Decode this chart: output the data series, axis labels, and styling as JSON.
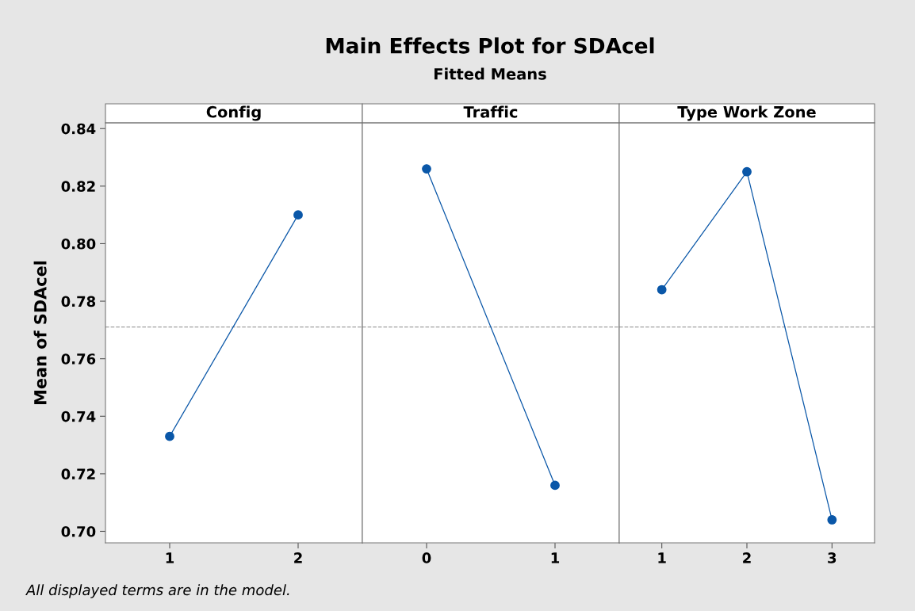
{
  "chart_data": [
    {
      "type": "line",
      "title": "Config",
      "annotations": [
        "Main Effects Plot for SDAcel",
        "Fitted Means",
        "All displayed terms are in the model."
      ],
      "ylabel": "Mean of SDAcel",
      "categories": [
        "1",
        "2"
      ],
      "series": [
        {
          "color": "#0a57a8",
          "values": [
            0.733,
            0.81
          ]
        }
      ],
      "ylim": [
        0.696,
        0.842
      ],
      "yticks": [
        {
          "value": 0.7,
          "label": "0.70"
        },
        {
          "value": 0.72,
          "label": "0.72"
        },
        {
          "value": 0.74,
          "label": "0.74"
        },
        {
          "value": 0.76,
          "label": "0.76"
        },
        {
          "value": 0.78,
          "label": "0.78"
        },
        {
          "value": 0.8,
          "label": "0.80"
        },
        {
          "value": 0.82,
          "label": "0.82"
        },
        {
          "value": 0.84,
          "label": "0.84"
        }
      ],
      "ref_lines": [
        {
          "axis": "y",
          "value": 0.771,
          "color": "#a0a0a0",
          "line_style": "dashed"
        }
      ],
      "marker": "circle",
      "grid": false,
      "legend": false
    },
    {
      "type": "line",
      "title": "Traffic",
      "categories": [
        "0",
        "1"
      ],
      "series": [
        {
          "color": "#0a57a8",
          "values": [
            0.826,
            0.716
          ]
        }
      ],
      "ylim": [
        0.696,
        0.842
      ],
      "tick_labels": "x",
      "ref_lines": [
        {
          "axis": "y",
          "value": 0.771,
          "color": "#a0a0a0",
          "line_style": "dashed"
        }
      ],
      "marker": "circle",
      "grid": false,
      "legend": false
    },
    {
      "type": "line",
      "title": "Type Work Zone",
      "categories": [
        "1",
        "2",
        "3"
      ],
      "series": [
        {
          "color": "#0a57a8",
          "values": [
            0.784,
            0.825,
            0.704
          ]
        }
      ],
      "ylim": [
        0.696,
        0.842
      ],
      "tick_labels": "x",
      "ref_lines": [
        {
          "axis": "y",
          "value": 0.771,
          "color": "#a0a0a0",
          "line_style": "dashed"
        }
      ],
      "marker": "circle",
      "grid": false,
      "legend": false
    }
  ]
}
